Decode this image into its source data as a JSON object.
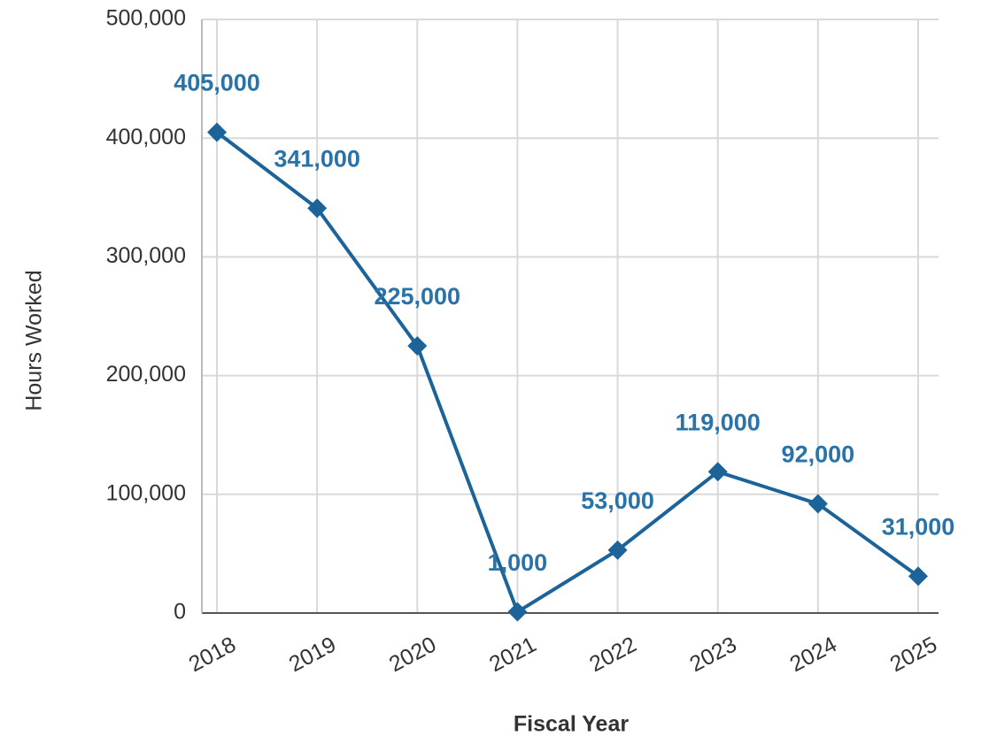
{
  "chart_data": {
    "type": "line",
    "x_label": "Fiscal Year",
    "y_label": "Hours Worked",
    "categories": [
      "2018",
      "2019",
      "2020",
      "2021",
      "2022",
      "2023",
      "2024",
      "2025"
    ],
    "values": [
      405000,
      341000,
      225000,
      1000,
      53000,
      119000,
      92000,
      31000
    ],
    "value_labels": [
      "405,000",
      "341,000",
      "225,000",
      "1,000",
      "53,000",
      "119,000",
      "92,000",
      "31,000"
    ],
    "color": "#1c6399",
    "ylim": [
      0,
      500000
    ],
    "yticks": [
      0,
      {
        "value": 100000,
        "label": "100,000"
      },
      {
        "value": 200000,
        "label": "200,000"
      },
      {
        "value": 300000,
        "label": "300,000"
      },
      {
        "value": 400000,
        "label": "400,000"
      },
      {
        "value": 500000,
        "label": "500,000"
      }
    ],
    "grid": true
  }
}
